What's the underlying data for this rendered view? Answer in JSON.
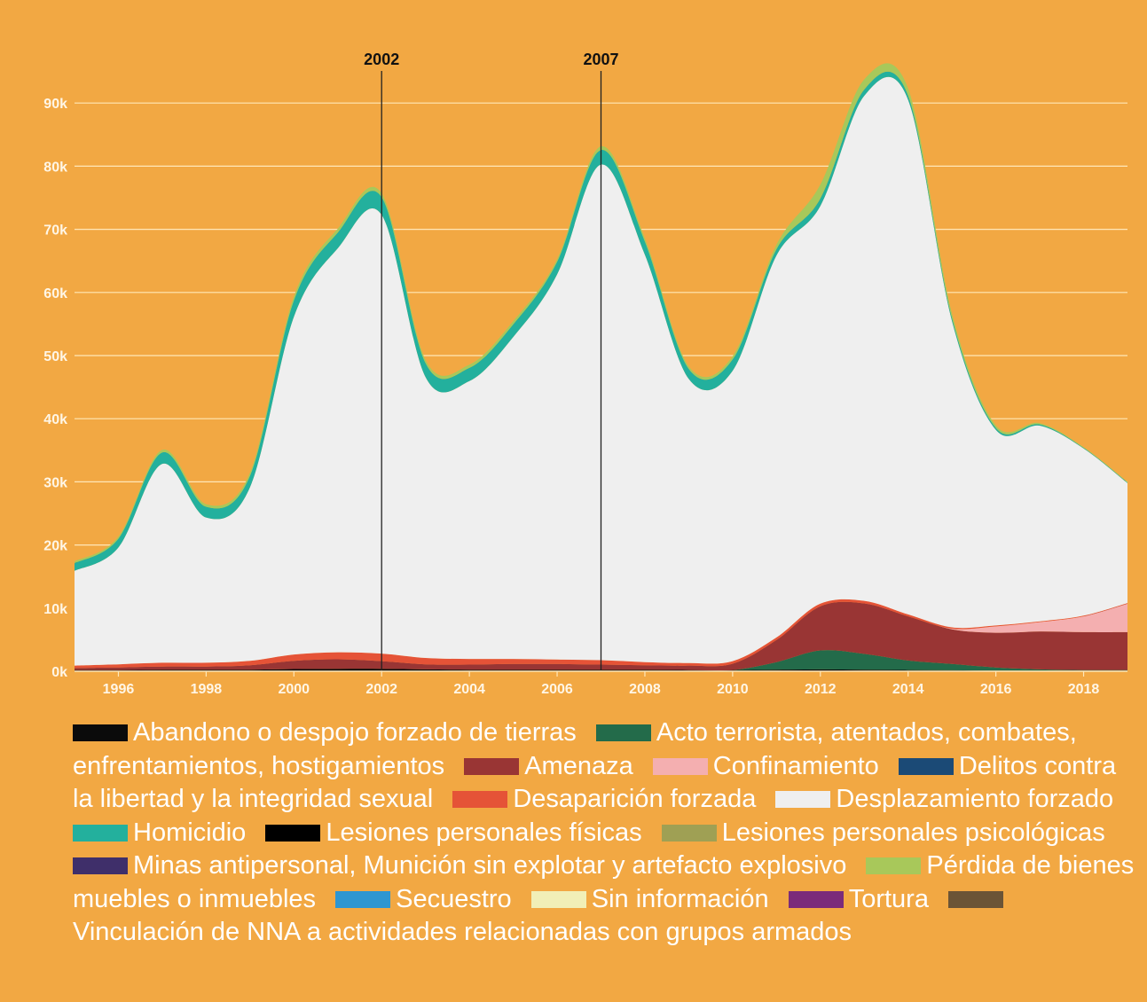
{
  "chart_data": {
    "type": "area",
    "stacked": true,
    "x": [
      1995,
      1996,
      1997,
      1998,
      1999,
      2000,
      2001,
      2002,
      2003,
      2004,
      2005,
      2006,
      2007,
      2008,
      2009,
      2010,
      2011,
      2012,
      2013,
      2014,
      2015,
      2016,
      2017,
      2018,
      2019
    ],
    "x_ticks": [
      "1996",
      "1998",
      "2000",
      "2002",
      "2004",
      "2006",
      "2008",
      "2010",
      "2012",
      "2014",
      "2016",
      "2018"
    ],
    "y_ticks": [
      "0k",
      "10k",
      "20k",
      "30k",
      "40k",
      "50k",
      "60k",
      "70k",
      "80k",
      "90k"
    ],
    "ylim": [
      0,
      100000
    ],
    "grid": true,
    "markers": [
      {
        "x": 2002,
        "label": "2002"
      },
      {
        "x": 2007,
        "label": "2007"
      }
    ],
    "series": [
      {
        "name": "Abandono o despojo forzado de tierras",
        "color": "#0B0B0B",
        "values": [
          200,
          200,
          250,
          250,
          250,
          350,
          400,
          400,
          300,
          250,
          250,
          250,
          250,
          250,
          200,
          200,
          250,
          300,
          250,
          200,
          150,
          100,
          100,
          100,
          100
        ]
      },
      {
        "name": "Acto terrorista, atentados, combates, enfrentamientos, hostigamientos",
        "color": "#236B4A",
        "values": [
          0,
          0,
          0,
          0,
          0,
          0,
          0,
          0,
          0,
          0,
          0,
          0,
          0,
          0,
          0,
          0,
          1200,
          3000,
          2500,
          1500,
          1000,
          500,
          200,
          100,
          100
        ]
      },
      {
        "name": "Amenaza",
        "color": "#993534",
        "values": [
          300,
          400,
          500,
          500,
          700,
          1300,
          1500,
          1200,
          800,
          800,
          900,
          900,
          800,
          700,
          700,
          1000,
          3500,
          7000,
          8000,
          7000,
          5500,
          5500,
          6000,
          6000,
          6000
        ]
      },
      {
        "name": "Confinamiento",
        "color": "#F4AFB0",
        "values": [
          0,
          0,
          0,
          0,
          0,
          0,
          0,
          0,
          0,
          0,
          0,
          0,
          0,
          0,
          0,
          0,
          0,
          0,
          0,
          0,
          100,
          1000,
          1500,
          2500,
          4500
        ]
      },
      {
        "name": "Delitos contra la libertad y la integridad sexual",
        "color": "#1B4A76",
        "values": [
          0,
          0,
          0,
          0,
          0,
          0,
          0,
          0,
          0,
          0,
          0,
          0,
          0,
          0,
          0,
          0,
          0,
          0,
          0,
          0,
          0,
          0,
          0,
          0,
          0
        ]
      },
      {
        "name": "Desaparición forzada",
        "color": "#E55337",
        "values": [
          400,
          500,
          600,
          600,
          700,
          1000,
          1100,
          1200,
          1000,
          900,
          800,
          700,
          700,
          500,
          400,
          400,
          400,
          400,
          400,
          300,
          200,
          150,
          100,
          100,
          100
        ]
      },
      {
        "name": "Desplazamiento forzado",
        "color": "#EFEFEF",
        "values": [
          15000,
          18500,
          31500,
          23000,
          27500,
          53500,
          64000,
          69500,
          44500,
          44000,
          51000,
          61000,
          78500,
          64500,
          45000,
          46000,
          60500,
          63000,
          80000,
          81500,
          48500,
          31000,
          31000,
          26500,
          19000
        ]
      },
      {
        "name": "Homicidio",
        "color": "#23B09D",
        "values": [
          1200,
          1400,
          1800,
          1700,
          1800,
          2600,
          2500,
          2800,
          2200,
          2100,
          2000,
          2000,
          2300,
          2100,
          1600,
          1800,
          1000,
          1200,
          1000,
          700,
          500,
          300,
          200,
          100,
          100
        ]
      },
      {
        "name": "Lesiones personales físicas",
        "color": "#000000",
        "values": [
          0,
          0,
          0,
          0,
          0,
          0,
          0,
          0,
          0,
          0,
          0,
          0,
          0,
          0,
          0,
          0,
          0,
          0,
          0,
          0,
          0,
          0,
          0,
          0,
          0
        ]
      },
      {
        "name": "Lesiones personales psicológicas",
        "color": "#9FA054",
        "values": [
          0,
          0,
          0,
          0,
          0,
          0,
          0,
          0,
          0,
          0,
          0,
          0,
          0,
          0,
          0,
          0,
          0,
          0,
          0,
          0,
          0,
          0,
          0,
          0,
          0
        ]
      },
      {
        "name": "Minas antipersonal, Munición sin explotar y artefacto explosivo",
        "color": "#3F2F6A",
        "values": [
          0,
          0,
          0,
          0,
          0,
          0,
          0,
          0,
          0,
          0,
          0,
          0,
          0,
          0,
          0,
          0,
          0,
          0,
          0,
          0,
          0,
          0,
          0,
          0,
          0
        ]
      },
      {
        "name": "Pérdida de bienes muebles o inmuebles",
        "color": "#A8C85A",
        "values": [
          300,
          300,
          400,
          400,
          500,
          600,
          600,
          600,
          500,
          500,
          500,
          400,
          600,
          500,
          400,
          500,
          700,
          2200,
          1600,
          1100,
          700,
          400,
          200,
          100,
          100
        ]
      },
      {
        "name": "Secuestro",
        "color": "#2E96D1",
        "values": [
          0,
          0,
          0,
          0,
          0,
          0,
          0,
          0,
          0,
          0,
          0,
          0,
          0,
          0,
          0,
          0,
          0,
          0,
          0,
          0,
          0,
          0,
          0,
          0,
          0
        ]
      },
      {
        "name": "Sin información",
        "color": "#F1EFB7",
        "values": [
          0,
          0,
          0,
          0,
          0,
          0,
          0,
          0,
          0,
          0,
          0,
          0,
          0,
          0,
          0,
          0,
          0,
          0,
          0,
          0,
          0,
          0,
          0,
          0,
          0
        ]
      },
      {
        "name": "Tortura",
        "color": "#7B2B7A",
        "values": [
          0,
          0,
          0,
          0,
          0,
          0,
          0,
          0,
          0,
          0,
          0,
          0,
          0,
          0,
          0,
          0,
          0,
          0,
          0,
          0,
          0,
          0,
          0,
          0,
          0
        ]
      },
      {
        "name": "Vinculación de NNA a actividades relacionadas con grupos armados",
        "color": "#6B5436",
        "values": [
          0,
          0,
          0,
          0,
          0,
          0,
          0,
          0,
          0,
          0,
          0,
          0,
          0,
          0,
          0,
          0,
          0,
          0,
          0,
          0,
          0,
          0,
          0,
          0,
          0
        ]
      }
    ]
  }
}
